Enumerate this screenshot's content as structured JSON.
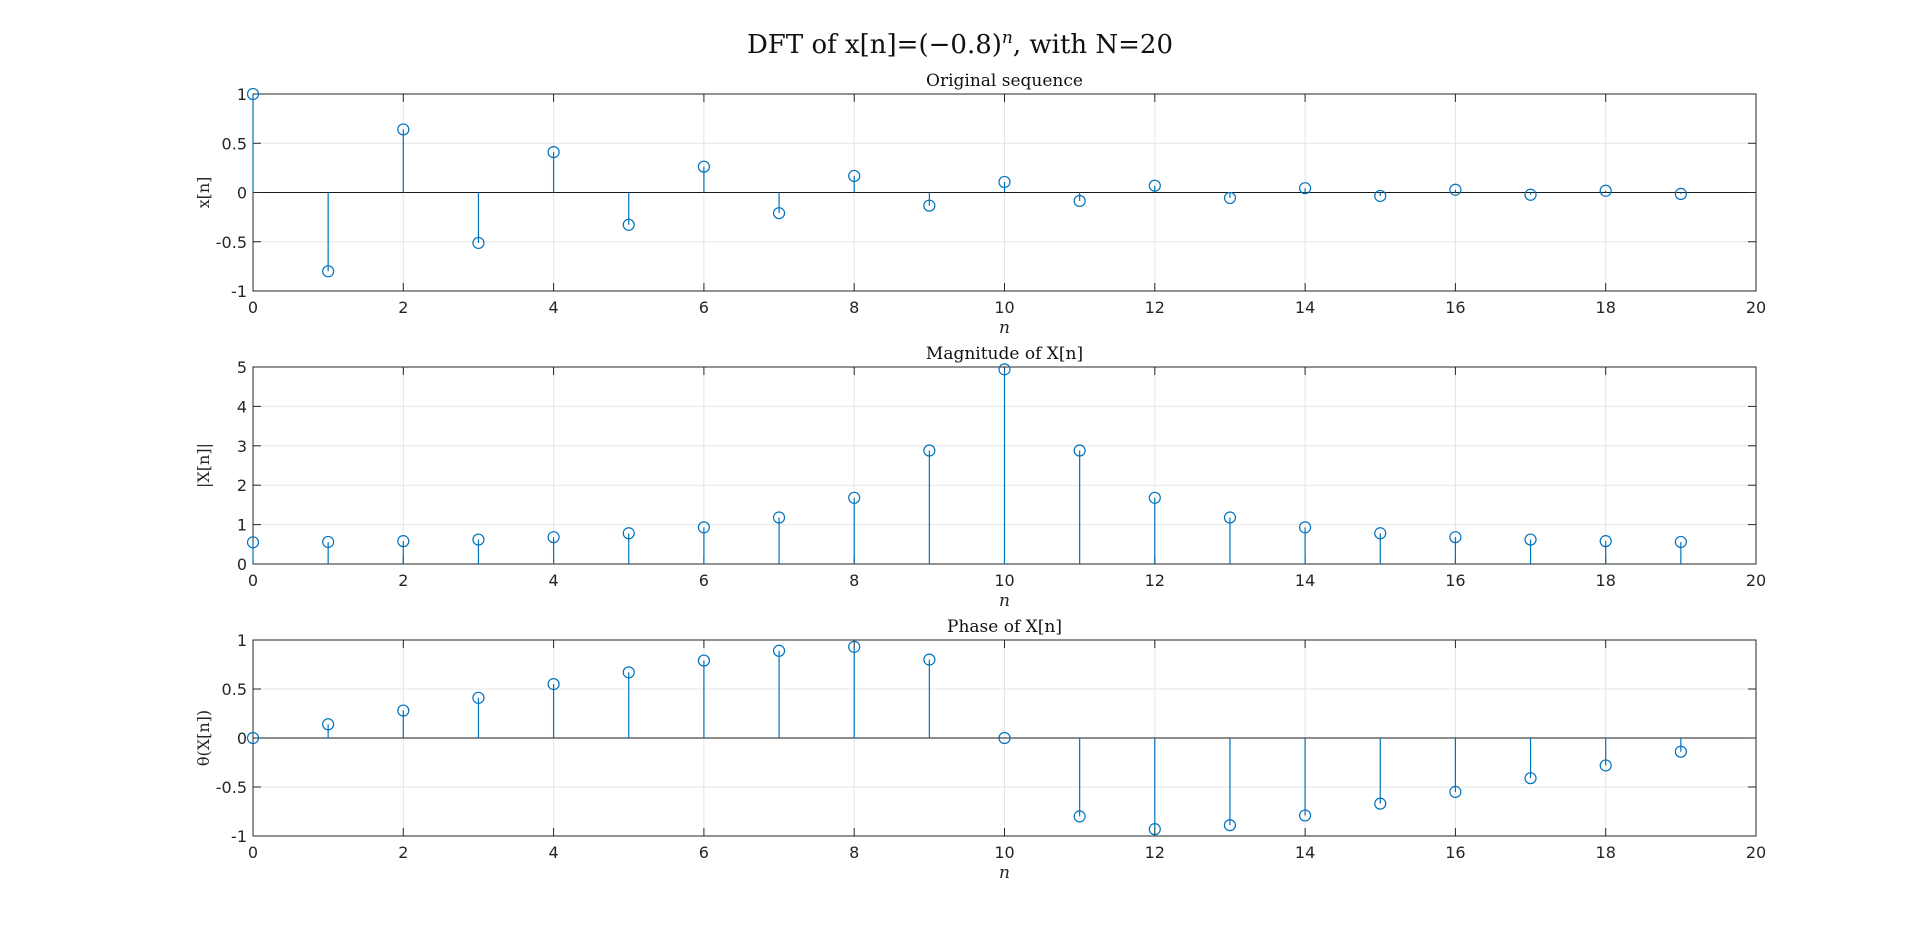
{
  "suptitle": {
    "prefix": "DFT of x[n]=(−0.8)",
    "exponent": "n",
    "suffix": ", with N=20"
  },
  "colors": {
    "stem": "#0072bd"
  },
  "chart_data": [
    {
      "type": "stem",
      "title": "Original sequence",
      "xlabel": "n",
      "ylabel": "x[n]",
      "xlim": [
        0,
        20
      ],
      "ylim": [
        -1,
        1
      ],
      "xticks": [
        "0",
        "2",
        "4",
        "6",
        "8",
        "10",
        "12",
        "14",
        "16",
        "18",
        "20"
      ],
      "yticks": [
        "-1",
        "-0.5",
        "0",
        "0.5",
        "1"
      ],
      "grid": true,
      "x": [
        0,
        1,
        2,
        3,
        4,
        5,
        6,
        7,
        8,
        9,
        10,
        11,
        12,
        13,
        14,
        15,
        16,
        17,
        18,
        19
      ],
      "values": [
        1,
        -0.8,
        0.64,
        -0.512,
        0.41,
        -0.328,
        0.262,
        -0.21,
        0.168,
        -0.134,
        0.107,
        -0.086,
        0.069,
        -0.055,
        0.044,
        -0.035,
        0.028,
        -0.023,
        0.018,
        -0.014
      ]
    },
    {
      "type": "stem",
      "title": "Magnitude of X[n]",
      "xlabel": "n",
      "ylabel": "|X[n]|",
      "xlim": [
        0,
        20
      ],
      "ylim": [
        0,
        5
      ],
      "xticks": [
        "0",
        "2",
        "4",
        "6",
        "8",
        "10",
        "12",
        "14",
        "16",
        "18",
        "20"
      ],
      "yticks": [
        "0",
        "1",
        "2",
        "3",
        "4",
        "5"
      ],
      "grid": true,
      "x": [
        0,
        1,
        2,
        3,
        4,
        5,
        6,
        7,
        8,
        9,
        10,
        11,
        12,
        13,
        14,
        15,
        16,
        17,
        18,
        19
      ],
      "values": [
        0.55,
        0.56,
        0.58,
        0.62,
        0.68,
        0.78,
        0.93,
        1.18,
        1.68,
        2.88,
        4.94,
        2.88,
        1.68,
        1.18,
        0.93,
        0.78,
        0.68,
        0.62,
        0.58,
        0.56
      ]
    },
    {
      "type": "stem",
      "title": "Phase of X[n]",
      "xlabel": "n",
      "ylabel": "θ(X[n])",
      "xlim": [
        0,
        20
      ],
      "ylim": [
        -1,
        1
      ],
      "xticks": [
        "0",
        "2",
        "4",
        "6",
        "8",
        "10",
        "12",
        "14",
        "16",
        "18",
        "20"
      ],
      "yticks": [
        "-1",
        "-0.5",
        "0",
        "0.5",
        "1"
      ],
      "grid": true,
      "x": [
        0,
        1,
        2,
        3,
        4,
        5,
        6,
        7,
        8,
        9,
        10,
        11,
        12,
        13,
        14,
        15,
        16,
        17,
        18,
        19
      ],
      "values": [
        0,
        0.14,
        0.28,
        0.41,
        0.55,
        0.67,
        0.79,
        0.89,
        0.93,
        0.8,
        0,
        -0.8,
        -0.93,
        -0.89,
        -0.79,
        -0.67,
        -0.55,
        -0.41,
        -0.28,
        -0.14
      ]
    }
  ]
}
